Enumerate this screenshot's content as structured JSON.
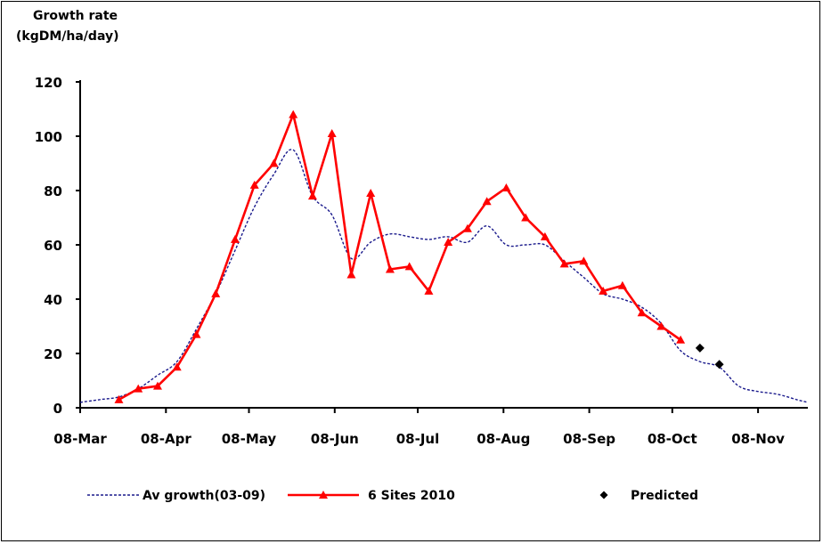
{
  "chart_data": {
    "type": "line",
    "ylabel_lines": [
      "Growth rate",
      "(kgDM/ha/day)"
    ],
    "ylim": [
      0,
      120
    ],
    "yticks": [
      0,
      20,
      40,
      60,
      80,
      100,
      120
    ],
    "xlim": [
      "2010-03-08",
      "2010-11-26"
    ],
    "xticks": [
      {
        "date": "2010-03-08",
        "label": "08-Mar"
      },
      {
        "date": "2010-04-08",
        "label": "08-Apr"
      },
      {
        "date": "2010-05-08",
        "label": "08-May"
      },
      {
        "date": "2010-06-08",
        "label": "08-Jun"
      },
      {
        "date": "2010-07-08",
        "label": "08-Jul"
      },
      {
        "date": "2010-08-08",
        "label": "08-Aug"
      },
      {
        "date": "2010-09-08",
        "label": "08-Sep"
      },
      {
        "date": "2010-10-08",
        "label": "08-Oct"
      },
      {
        "date": "2010-11-08",
        "label": "08-Nov"
      }
    ],
    "grid": false,
    "legend_position": "bottom",
    "series": [
      {
        "name": "Av growth(03-09)",
        "style": "dashed",
        "color": "#1a1a8c",
        "points": [
          [
            "2010-03-08",
            2
          ],
          [
            "2010-03-15",
            3
          ],
          [
            "2010-03-22",
            4
          ],
          [
            "2010-03-29",
            7
          ],
          [
            "2010-04-05",
            12
          ],
          [
            "2010-04-12",
            17
          ],
          [
            "2010-04-19",
            29
          ],
          [
            "2010-04-26",
            42
          ],
          [
            "2010-05-03",
            58
          ],
          [
            "2010-05-10",
            74
          ],
          [
            "2010-05-17",
            86
          ],
          [
            "2010-05-24",
            95
          ],
          [
            "2010-05-31",
            78
          ],
          [
            "2010-06-07",
            71
          ],
          [
            "2010-06-14",
            55
          ],
          [
            "2010-06-21",
            61
          ],
          [
            "2010-06-28",
            64
          ],
          [
            "2010-07-05",
            63
          ],
          [
            "2010-07-12",
            62
          ],
          [
            "2010-07-19",
            63
          ],
          [
            "2010-07-26",
            61
          ],
          [
            "2010-08-02",
            67
          ],
          [
            "2010-08-09",
            60
          ],
          [
            "2010-08-16",
            60
          ],
          [
            "2010-08-23",
            60
          ],
          [
            "2010-08-30",
            54
          ],
          [
            "2010-09-06",
            48
          ],
          [
            "2010-09-13",
            42
          ],
          [
            "2010-09-20",
            40
          ],
          [
            "2010-09-27",
            37
          ],
          [
            "2010-10-04",
            31
          ],
          [
            "2010-10-11",
            21
          ],
          [
            "2010-10-18",
            17
          ],
          [
            "2010-10-25",
            15
          ],
          [
            "2010-11-01",
            8
          ],
          [
            "2010-11-08",
            6
          ],
          [
            "2010-11-15",
            5
          ],
          [
            "2010-11-22",
            3
          ],
          [
            "2010-11-26",
            2
          ]
        ]
      },
      {
        "name": "6 Sites 2010",
        "style": "solid",
        "marker": "triangle",
        "color": "#ff0000",
        "points": [
          [
            "2010-03-22",
            3
          ],
          [
            "2010-03-29",
            7
          ],
          [
            "2010-04-05",
            8
          ],
          [
            "2010-04-12",
            15
          ],
          [
            "2010-04-19",
            27
          ],
          [
            "2010-04-26",
            42
          ],
          [
            "2010-05-03",
            62
          ],
          [
            "2010-05-10",
            82
          ],
          [
            "2010-05-17",
            90
          ],
          [
            "2010-05-24",
            108
          ],
          [
            "2010-05-31",
            78
          ],
          [
            "2010-06-07",
            101
          ],
          [
            "2010-06-14",
            49
          ],
          [
            "2010-06-21",
            79
          ],
          [
            "2010-06-28",
            51
          ],
          [
            "2010-07-05",
            52
          ],
          [
            "2010-07-12",
            43
          ],
          [
            "2010-07-19",
            61
          ],
          [
            "2010-07-26",
            66
          ],
          [
            "2010-08-02",
            76
          ],
          [
            "2010-08-09",
            81
          ],
          [
            "2010-08-16",
            70
          ],
          [
            "2010-08-23",
            63
          ],
          [
            "2010-08-30",
            53
          ],
          [
            "2010-09-06",
            54
          ],
          [
            "2010-09-13",
            43
          ],
          [
            "2010-09-20",
            45
          ],
          [
            "2010-09-27",
            35
          ],
          [
            "2010-10-04",
            30
          ],
          [
            "2010-10-11",
            25
          ]
        ]
      },
      {
        "name": "Predicted",
        "style": "markers",
        "marker": "diamond",
        "color": "#000000",
        "points": [
          [
            "2010-10-18",
            22
          ],
          [
            "2010-10-25",
            16
          ]
        ]
      }
    ]
  }
}
